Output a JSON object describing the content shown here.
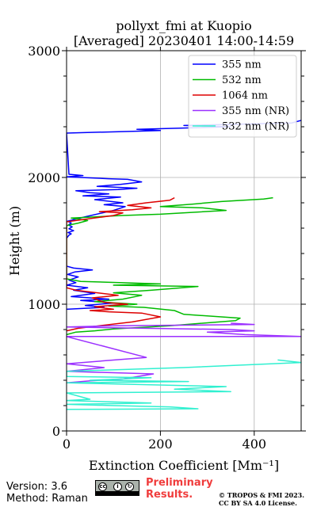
{
  "chart_data": {
    "type": "line",
    "title": "pollyxt_fmi at Kuopio",
    "subtitle": "[Averaged] 20230401 14:00-14:59",
    "xlabel": "Extinction Coefficient [Mm⁻¹]",
    "ylabel": "Height (m)",
    "xlim": [
      0,
      500
    ],
    "ylim": [
      0,
      3000
    ],
    "xticks": [
      0,
      200,
      400
    ],
    "yticks": [
      0,
      1000,
      2000,
      3000
    ],
    "grid": true,
    "legend_position": "top-right",
    "series": [
      {
        "name": "355 nm",
        "color": "#0000ff",
        "points": [
          [
            0,
            1520
          ],
          [
            5,
            1545
          ],
          [
            10,
            1555
          ],
          [
            3,
            1565
          ],
          [
            15,
            1580
          ],
          [
            5,
            1595
          ],
          [
            12,
            1610
          ],
          [
            4,
            1625
          ],
          [
            10,
            1640
          ],
          [
            2,
            1655
          ],
          [
            40,
            1690
          ],
          [
            100,
            1740
          ],
          [
            125,
            1770
          ],
          [
            80,
            1785
          ],
          [
            120,
            1800
          ],
          [
            60,
            1825
          ],
          [
            115,
            1845
          ],
          [
            35,
            1855
          ],
          [
            90,
            1870
          ],
          [
            50,
            1880
          ],
          [
            20,
            1895
          ],
          [
            110,
            1905
          ],
          [
            150,
            1915
          ],
          [
            65,
            1930
          ],
          [
            115,
            1945
          ],
          [
            160,
            1965
          ],
          [
            130,
            1985
          ],
          [
            90,
            1990
          ],
          [
            0,
            2005
          ],
          [
            35,
            2015
          ],
          [
            5,
            2025
          ],
          [
            0,
            2350
          ],
          [
            150,
            2365
          ],
          [
            200,
            2370
          ],
          [
            150,
            2380
          ],
          [
            350,
            2400
          ],
          [
            250,
            2410
          ],
          [
            480,
            2430
          ],
          [
            500,
            2450
          ]
        ]
      },
      {
        "name": "355 nm",
        "color": "#0000ff",
        "points": [
          [
            0,
            960
          ],
          [
            80,
            975
          ],
          [
            40,
            990
          ],
          [
            100,
            1010
          ],
          [
            30,
            1030
          ],
          [
            90,
            1040
          ],
          [
            10,
            1060
          ],
          [
            60,
            1085
          ],
          [
            15,
            1110
          ],
          [
            45,
            1130
          ],
          [
            0,
            1150
          ],
          [
            20,
            1170
          ],
          [
            5,
            1190
          ],
          [
            25,
            1215
          ],
          [
            2,
            1235
          ],
          [
            18,
            1255
          ],
          [
            55,
            1270
          ],
          [
            15,
            1285
          ],
          [
            0,
            1300
          ]
        ]
      },
      {
        "name": "532 nm",
        "color": "#00bb00",
        "points": [
          [
            0,
            760
          ],
          [
            20,
            780
          ],
          [
            60,
            790
          ],
          [
            100,
            805
          ],
          [
            220,
            830
          ],
          [
            360,
            870
          ],
          [
            370,
            890
          ],
          [
            250,
            920
          ],
          [
            230,
            950
          ],
          [
            165,
            975
          ],
          [
            90,
            985
          ],
          [
            150,
            1000
          ],
          [
            60,
            1020
          ],
          [
            120,
            1040
          ],
          [
            160,
            1070
          ],
          [
            100,
            1090
          ],
          [
            180,
            1110
          ],
          [
            280,
            1140
          ],
          [
            100,
            1150
          ],
          [
            200,
            1160
          ],
          [
            30,
            1180
          ],
          [
            0,
            1200
          ],
          [
            0,
            1620
          ],
          [
            25,
            1640
          ],
          [
            45,
            1660
          ],
          [
            10,
            1680
          ],
          [
            120,
            1700
          ],
          [
            200,
            1710
          ],
          [
            340,
            1740
          ],
          [
            290,
            1760
          ],
          [
            200,
            1770
          ],
          [
            270,
            1790
          ],
          [
            330,
            1810
          ],
          [
            420,
            1830
          ],
          [
            440,
            1840
          ]
        ]
      },
      {
        "name": "1064 nm",
        "color": "#dd0000",
        "points": [
          [
            0,
            790
          ],
          [
            25,
            810
          ],
          [
            70,
            830
          ],
          [
            140,
            860
          ],
          [
            200,
            900
          ],
          [
            160,
            930
          ],
          [
            90,
            940
          ],
          [
            50,
            950
          ],
          [
            100,
            960
          ],
          [
            60,
            980
          ],
          [
            130,
            1000
          ],
          [
            80,
            1015
          ],
          [
            55,
            1050
          ],
          [
            110,
            1070
          ],
          [
            20,
            1110
          ],
          [
            0,
            1130
          ],
          [
            0,
            1650
          ],
          [
            40,
            1670
          ],
          [
            100,
            1700
          ],
          [
            120,
            1720
          ],
          [
            70,
            1730
          ],
          [
            140,
            1745
          ],
          [
            180,
            1760
          ],
          [
            130,
            1780
          ],
          [
            170,
            1800
          ],
          [
            220,
            1820
          ],
          [
            230,
            1840
          ]
        ]
      },
      {
        "name": "355 nm (NR)",
        "color": "#9b30ff",
        "points": [
          [
            0,
            380
          ],
          [
            50,
            395
          ],
          [
            120,
            410
          ],
          [
            185,
            450
          ],
          [
            0,
            470
          ],
          [
            80,
            500
          ],
          [
            0,
            530
          ],
          [
            170,
            580
          ],
          [
            0,
            745
          ],
          [
            500,
            745
          ],
          [
            380,
            760
          ],
          [
            300,
            780
          ],
          [
            400,
            790
          ],
          [
            350,
            800
          ],
          [
            0,
            820
          ],
          [
            100,
            830
          ],
          [
            400,
            840
          ],
          [
            350,
            850
          ]
        ]
      },
      {
        "name": "532 nm (NR)",
        "color": "#30f0d0",
        "points": [
          [
            0,
            170
          ],
          [
            280,
            175
          ],
          [
            220,
            190
          ],
          [
            100,
            200
          ],
          [
            0,
            210
          ],
          [
            180,
            220
          ],
          [
            0,
            240
          ],
          [
            50,
            250
          ],
          [
            0,
            300
          ],
          [
            350,
            310
          ],
          [
            230,
            330
          ],
          [
            340,
            350
          ],
          [
            0,
            380
          ],
          [
            260,
            390
          ],
          [
            50,
            400
          ],
          [
            180,
            420
          ],
          [
            0,
            430
          ],
          [
            0,
            470
          ],
          [
            250,
            500
          ],
          [
            500,
            540
          ],
          [
            450,
            560
          ]
        ]
      }
    ]
  },
  "legend": [
    {
      "label": "355 nm",
      "color": "#0000ff"
    },
    {
      "label": "532 nm",
      "color": "#00bb00"
    },
    {
      "label": "1064 nm",
      "color": "#dd0000"
    },
    {
      "label": "355 nm (NR)",
      "color": "#9b30ff"
    },
    {
      "label": "532 nm (NR)",
      "color": "#30f0d0"
    }
  ],
  "footer": {
    "version": "Version: 3.6",
    "method": "Method: Raman",
    "preliminary_line1": "Preliminary",
    "preliminary_line2": "Results.",
    "credit_line1": "© TROPOS & FMI 2023.",
    "credit_line2": "CC BY SA 4.0 License."
  }
}
